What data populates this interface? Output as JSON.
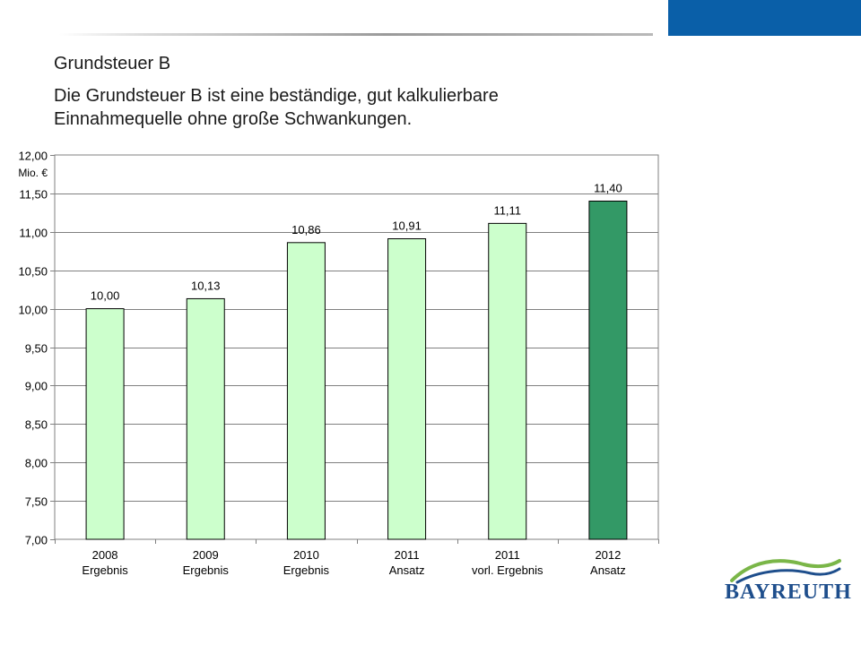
{
  "header": {
    "title": "Grundsteuer B",
    "subtitle": "Die Grundsteuer B ist eine beständige, gut kalkulierbare Einnahmequelle ohne große Schwankungen."
  },
  "logo": {
    "text": "BAYREUTH"
  },
  "colors": {
    "brand_blue": "#0a5fa8",
    "bar_light": "#ccffcc",
    "bar_highlight": "#339966",
    "logo_green": "#7ab648",
    "logo_blue": "#1e4e8c"
  },
  "chart_data": {
    "type": "bar",
    "unit_label": "Mio. €",
    "ylim": [
      7.0,
      12.0
    ],
    "ytick_step": 0.5,
    "yticks": [
      "7,00",
      "7,50",
      "8,00",
      "8,50",
      "9,00",
      "9,50",
      "10,00",
      "10,50",
      "11,00",
      "11,50",
      "12,00"
    ],
    "grid": true,
    "categories": [
      [
        "2008",
        "Ergebnis"
      ],
      [
        "2009",
        "Ergebnis"
      ],
      [
        "2010",
        "Ergebnis"
      ],
      [
        "2011",
        "Ansatz"
      ],
      [
        "2011",
        "vorl. Ergebnis"
      ],
      [
        "2012",
        "Ansatz"
      ]
    ],
    "values": [
      10.0,
      10.13,
      10.86,
      10.91,
      11.11,
      11.4
    ],
    "data_labels": [
      "10,00",
      "10,13",
      "10,86",
      "10,91",
      "11,11",
      "11,40"
    ],
    "highlight_index": 5
  }
}
